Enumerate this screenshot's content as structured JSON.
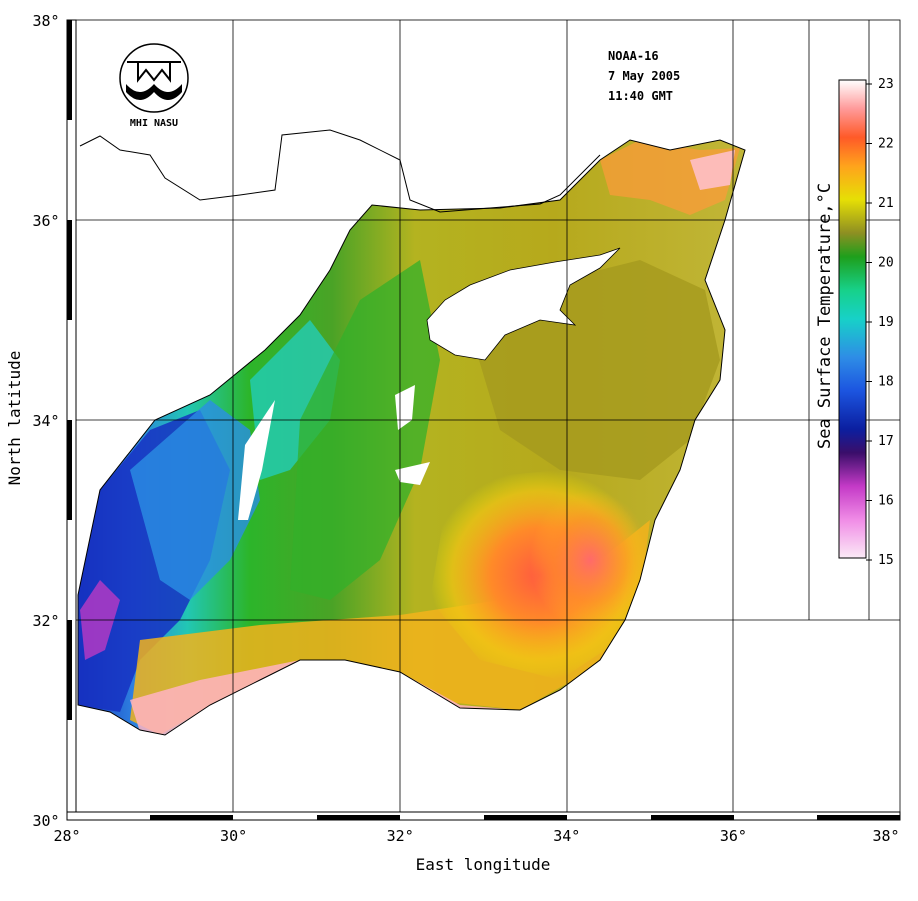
{
  "satellite_info": {
    "satellite": "NOAA-16",
    "date": "7 May 2005",
    "time": "11:40 GMT"
  },
  "logo": {
    "caption": "MHI NASU",
    "icon": "mhi-nasu-logo-icon"
  },
  "axes": {
    "x_label": "East longitude",
    "y_label": "North latitude",
    "x_range": [
      28,
      38
    ],
    "y_range": [
      30,
      38
    ],
    "x_ticks": [
      "28°",
      "30°",
      "32°",
      "34°",
      "36°",
      "38°"
    ],
    "y_ticks": [
      "30°",
      "32°",
      "34°",
      "36°",
      "38°"
    ]
  },
  "colorbar": {
    "title": "Sea Surface Temperature,°C",
    "range": [
      15,
      23
    ],
    "tick_labels": [
      "23",
      "22",
      "21",
      "20",
      "19",
      "18",
      "17",
      "16",
      "15"
    ],
    "colors": {
      "c15": "#fbeaf6",
      "c16": "#c43ac7",
      "c17": "#0b1fa0",
      "c18": "#2e8de6",
      "c19": "#17d1a7",
      "c20": "#1e9f1c",
      "c20_5": "#8e8f22",
      "c21": "#e6df05",
      "c22": "#ff5a28",
      "c23": "#ffffff"
    }
  }
}
